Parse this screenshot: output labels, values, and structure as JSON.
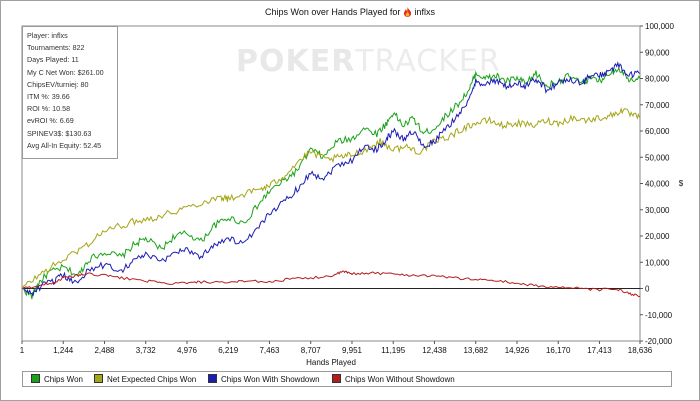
{
  "chart_data": {
    "type": "line",
    "title": "Chips Won over Hands Played for",
    "player": "inflxs",
    "xlabel": "Hands Played",
    "ylabel": "$",
    "xlim": [
      1,
      18636
    ],
    "ylim": [
      -20000,
      100000
    ],
    "x_ticks": [
      1,
      1244,
      2488,
      3732,
      4976,
      6219,
      7463,
      8707,
      9951,
      11195,
      12438,
      13682,
      14926,
      16170,
      17413,
      18636
    ],
    "x_tick_labels": [
      "1",
      "1,244",
      "2,488",
      "3,732",
      "4,976",
      "6,219",
      "7,463",
      "8,707",
      "9,951",
      "11,195",
      "12,438",
      "13,682",
      "14,926",
      "16,170",
      "17,413",
      "18,636"
    ],
    "y_ticks": [
      -20000,
      -10000,
      0,
      10000,
      20000,
      30000,
      40000,
      50000,
      60000,
      70000,
      80000,
      90000,
      100000
    ],
    "y_tick_labels": [
      "-20,000",
      "-10,000",
      "0",
      "10,000",
      "20,000",
      "30,000",
      "40,000",
      "50,000",
      "60,000",
      "70,000",
      "80,000",
      "90,000",
      "100,000"
    ],
    "grid": false,
    "legend": "bottom",
    "series": [
      {
        "name": "Chips Won",
        "color": "#1aa31a",
        "x": [
          1,
          300,
          500,
          800,
          1244,
          1700,
          2000,
          2488,
          3000,
          3400,
          3732,
          4200,
          4600,
          4976,
          5400,
          5800,
          6219,
          6700,
          7200,
          7463,
          7900,
          8300,
          8707,
          9100,
          9500,
          9951,
          10300,
          10700,
          11000,
          11195,
          11500,
          11800,
          12100,
          12438,
          12800,
          13200,
          13500,
          13682,
          14000,
          14300,
          14600,
          14926,
          15200,
          15500,
          15800,
          16170,
          16500,
          16900,
          17100,
          17413,
          17700,
          18000,
          18300,
          18636
        ],
        "y": [
          0,
          -3000,
          2000,
          6000,
          8000,
          5000,
          11000,
          14000,
          12000,
          17000,
          19000,
          15000,
          20000,
          21000,
          18000,
          24000,
          27000,
          25000,
          33000,
          37000,
          41000,
          45000,
          53000,
          50000,
          56000,
          57000,
          61000,
          59000,
          63000,
          67000,
          62000,
          65000,
          59000,
          61000,
          66000,
          71000,
          76000,
          82000,
          80000,
          81000,
          79000,
          80000,
          78000,
          82000,
          77000,
          79000,
          81000,
          78000,
          80000,
          79000,
          82000,
          84000,
          80000,
          80000
        ]
      },
      {
        "name": "Net Expected Chips Won",
        "color": "#a5a518",
        "x": [
          1,
          500,
          1000,
          1500,
          2000,
          2488,
          3000,
          3500,
          4000,
          4500,
          4976,
          5500,
          6000,
          6219,
          6700,
          7200,
          7463,
          7900,
          8300,
          8707,
          9200,
          9600,
          9951,
          10400,
          10800,
          11195,
          11600,
          12000,
          12438,
          12900,
          13300,
          13682,
          14100,
          14500,
          14926,
          15400,
          15800,
          16170,
          16600,
          17000,
          17413,
          17800,
          18100,
          18400,
          18636
        ],
        "y": [
          0,
          5000,
          9000,
          13000,
          17000,
          22000,
          24000,
          26000,
          27000,
          29000,
          31000,
          33000,
          35000,
          34000,
          36000,
          38000,
          39000,
          43000,
          48000,
          52000,
          49000,
          50000,
          51000,
          53000,
          56000,
          53000,
          54000,
          52000,
          56000,
          58000,
          61000,
          63000,
          64000,
          62000,
          63000,
          62000,
          64000,
          63000,
          65000,
          64000,
          65000,
          66000,
          68000,
          66000,
          65000
        ]
      },
      {
        "name": "Chips Won With Showdown",
        "color": "#1c1cb4",
        "x": [
          1,
          300,
          600,
          1000,
          1244,
          1600,
          2000,
          2488,
          3000,
          3400,
          3732,
          4200,
          4600,
          4976,
          5400,
          5800,
          6219,
          6700,
          7200,
          7463,
          7900,
          8300,
          8707,
          9100,
          9500,
          9951,
          10300,
          10700,
          11000,
          11195,
          11500,
          11800,
          12100,
          12438,
          12800,
          13200,
          13500,
          13682,
          14000,
          14300,
          14600,
          14926,
          15200,
          15500,
          15800,
          16170,
          16500,
          16900,
          17100,
          17413,
          17700,
          18000,
          18300,
          18636
        ],
        "y": [
          0,
          -2000,
          1000,
          3000,
          5000,
          2000,
          7000,
          9000,
          7000,
          11000,
          13000,
          10000,
          14000,
          15000,
          12000,
          17000,
          19000,
          17000,
          24000,
          29000,
          33000,
          38000,
          44000,
          42000,
          47000,
          49000,
          54000,
          53000,
          57000,
          60000,
          57000,
          60000,
          54000,
          56000,
          61000,
          67000,
          72000,
          79000,
          78000,
          79000,
          77000,
          78000,
          77000,
          80000,
          76000,
          78000,
          80000,
          78000,
          81000,
          81000,
          83000,
          85000,
          81000,
          82000
        ]
      },
      {
        "name": "Chips Won Without Showdown",
        "color": "#b41c1c",
        "x": [
          1,
          500,
          1000,
          1244,
          1700,
          2000,
          2488,
          3000,
          3732,
          4200,
          4976,
          5400,
          6219,
          6700,
          7463,
          8000,
          8707,
          9400,
          9700,
          9951,
          10500,
          11195,
          11800,
          12438,
          13000,
          13682,
          14300,
          14926,
          15500,
          16170,
          16800,
          17413,
          17900,
          18300,
          18636
        ],
        "y": [
          0,
          1000,
          2500,
          4000,
          5000,
          5500,
          5000,
          4000,
          3000,
          2000,
          2000,
          2500,
          2000,
          3000,
          2500,
          3500,
          4000,
          5000,
          6500,
          5500,
          6000,
          5500,
          5000,
          5000,
          4000,
          3500,
          3000,
          2000,
          1000,
          500,
          0,
          -500,
          0,
          -2000,
          -3000
        ]
      }
    ]
  },
  "stats": [
    "Player: inflxs",
    "Tournaments: 822",
    "Days Played: 11",
    "My C Net Won: $261.00",
    "ChipsEV/turniej: 80",
    "ITM %: 39.66",
    "ROI %: 10.58",
    "evROI %: 6.69",
    "SPINEV3$: $130.63",
    "Avg All-In Equity: 52.45"
  ],
  "watermark": {
    "bold": "POKER",
    "thin": "TRACKER"
  },
  "flame_icon": "flame-icon",
  "legend_labels": [
    "Chips Won",
    "Net Expected Chips Won",
    "Chips Won With Showdown",
    "Chips Won Without Showdown"
  ]
}
